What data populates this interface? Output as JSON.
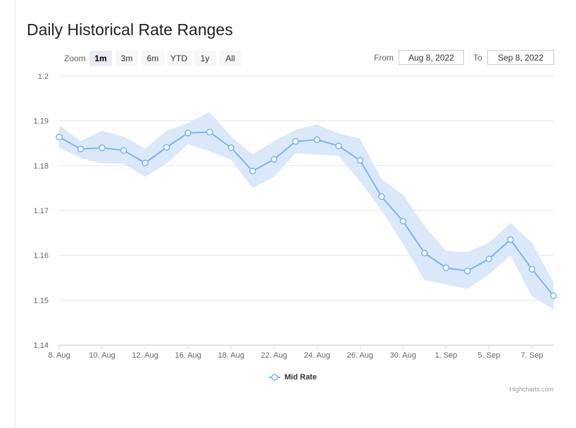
{
  "title": "Daily Historical Rate Ranges",
  "zoom": {
    "label": "Zoom",
    "buttons": [
      "1m",
      "3m",
      "6m",
      "YTD",
      "1y",
      "All"
    ],
    "active": "1m"
  },
  "range": {
    "from_label": "From",
    "from_value": "Aug 8, 2022",
    "to_label": "To",
    "to_value": "Sep 8, 2022"
  },
  "legend": {
    "label": "Mid Rate"
  },
  "credits": "Highcharts.com",
  "colors": {
    "line": "#7cb5ec",
    "band": "#d6e6f8",
    "grid": "#e6e6e6"
  },
  "chart_data": {
    "type": "line",
    "title": "Daily Historical Rate Ranges",
    "ylim": [
      1.14,
      1.2
    ],
    "yticks": [
      "1.14",
      "1.15",
      "1.16",
      "1.17",
      "1.18",
      "1.19",
      "1.2"
    ],
    "xticks": [
      "8. Aug",
      "10. Aug",
      "12. Aug",
      "16. Aug",
      "18. Aug",
      "22. Aug",
      "24. Aug",
      "26. Aug",
      "30. Aug",
      "1. Sep",
      "5. Sep",
      "7. Sep"
    ],
    "grid": true,
    "legend_position": "bottom-center",
    "series": [
      {
        "name": "Mid Rate",
        "type": "line",
        "values": [
          1.1864,
          1.1837,
          1.184,
          1.1834,
          1.1806,
          1.1841,
          1.1873,
          1.1875,
          1.184,
          1.1788,
          1.1814,
          1.1854,
          1.1858,
          1.1844,
          1.1812,
          1.1731,
          1.1676,
          1.1605,
          1.1572,
          1.1565,
          1.1592,
          1.1635,
          1.1569,
          1.151
        ]
      },
      {
        "type": "arearange",
        "low": [
          1.184,
          1.1817,
          1.1805,
          1.1804,
          1.1775,
          1.1805,
          1.1848,
          1.1832,
          1.1813,
          1.175,
          1.1775,
          1.1828,
          1.1825,
          1.1822,
          1.1765,
          1.17,
          1.1625,
          1.1545,
          1.1535,
          1.1525,
          1.1557,
          1.16,
          1.1508,
          1.148
        ],
        "high": [
          1.189,
          1.1855,
          1.1878,
          1.1865,
          1.1838,
          1.1878,
          1.1895,
          1.192,
          1.1865,
          1.1825,
          1.1855,
          1.188,
          1.1892,
          1.1872,
          1.186,
          1.177,
          1.1735,
          1.1665,
          1.161,
          1.1607,
          1.1628,
          1.1672,
          1.1628,
          1.154
        ]
      }
    ]
  }
}
